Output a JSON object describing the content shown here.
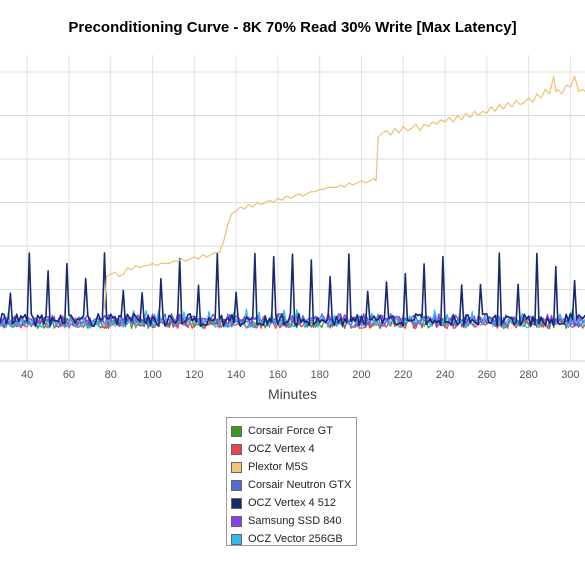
{
  "chart_data": {
    "type": "line",
    "title": "Preconditioning Curve - 8K 70% Read 30% Write [Max Latency]",
    "xlabel": "Minutes",
    "ylabel": "",
    "xlim": [
      27,
      307
    ],
    "ylim": [
      0,
      7
    ],
    "xticks": [
      40,
      60,
      80,
      100,
      120,
      140,
      160,
      180,
      200,
      220,
      240,
      260,
      280,
      300
    ],
    "ygrid": [
      1,
      2,
      3,
      4,
      5,
      6,
      7
    ],
    "grid": true,
    "legend": "bottom-center",
    "series": [
      {
        "name": "Corsair Force GT",
        "color": "#3d9a1f",
        "base": 0.22,
        "noise": 0.12,
        "seed": 11,
        "spike_every": 4,
        "spike_min": 0.25,
        "spike_max": 0.35
      },
      {
        "name": "OCZ Vertex 4",
        "color": "#e8474a",
        "base": 0.2,
        "noise": 0.1,
        "seed": 23,
        "spike_every": 5,
        "spike_min": 0.2,
        "spike_max": 0.35
      },
      {
        "name": "Plextor M5S",
        "color": "#f0c47c",
        "start": 77,
        "points": [
          [
            77,
            0.55
          ],
          [
            78,
            1.3
          ],
          [
            80,
            1.35
          ],
          [
            82,
            1.4
          ],
          [
            84,
            1.3
          ],
          [
            86,
            1.35
          ],
          [
            88,
            1.5
          ],
          [
            90,
            1.45
          ],
          [
            92,
            1.55
          ],
          [
            94,
            1.5
          ],
          [
            96,
            1.55
          ],
          [
            98,
            1.55
          ],
          [
            100,
            1.6
          ],
          [
            102,
            1.55
          ],
          [
            104,
            1.6
          ],
          [
            106,
            1.6
          ],
          [
            108,
            1.6
          ],
          [
            110,
            1.65
          ],
          [
            112,
            1.65
          ],
          [
            114,
            1.7
          ],
          [
            116,
            1.65
          ],
          [
            118,
            1.7
          ],
          [
            120,
            1.75
          ],
          [
            122,
            1.7
          ],
          [
            124,
            1.8
          ],
          [
            126,
            1.75
          ],
          [
            128,
            1.8
          ],
          [
            130,
            1.85
          ],
          [
            132,
            1.85
          ],
          [
            134,
            2.1
          ],
          [
            136,
            2.5
          ],
          [
            138,
            2.75
          ],
          [
            140,
            2.8
          ],
          [
            142,
            2.9
          ],
          [
            144,
            2.85
          ],
          [
            146,
            2.95
          ],
          [
            148,
            2.9
          ],
          [
            150,
            3.0
          ],
          [
            152,
            2.95
          ],
          [
            154,
            3.0
          ],
          [
            156,
            3.05
          ],
          [
            158,
            3.0
          ],
          [
            160,
            3.1
          ],
          [
            162,
            3.05
          ],
          [
            164,
            3.15
          ],
          [
            166,
            3.1
          ],
          [
            168,
            3.15
          ],
          [
            170,
            3.2
          ],
          [
            172,
            3.15
          ],
          [
            174,
            3.2
          ],
          [
            176,
            3.25
          ],
          [
            178,
            3.25
          ],
          [
            180,
            3.3
          ],
          [
            182,
            3.3
          ],
          [
            184,
            3.35
          ],
          [
            186,
            3.35
          ],
          [
            188,
            3.35
          ],
          [
            190,
            3.4
          ],
          [
            192,
            3.35
          ],
          [
            194,
            3.45
          ],
          [
            196,
            3.4
          ],
          [
            198,
            3.45
          ],
          [
            200,
            3.5
          ],
          [
            202,
            3.45
          ],
          [
            204,
            3.5
          ],
          [
            206,
            3.55
          ],
          [
            207,
            3.5
          ],
          [
            208,
            4.5
          ],
          [
            210,
            4.6
          ],
          [
            212,
            4.65
          ],
          [
            214,
            4.55
          ],
          [
            216,
            4.7
          ],
          [
            218,
            4.6
          ],
          [
            220,
            4.75
          ],
          [
            222,
            4.65
          ],
          [
            224,
            4.7
          ],
          [
            226,
            4.8
          ],
          [
            228,
            4.65
          ],
          [
            230,
            4.8
          ],
          [
            232,
            4.75
          ],
          [
            234,
            4.85
          ],
          [
            236,
            4.8
          ],
          [
            238,
            4.9
          ],
          [
            240,
            4.85
          ],
          [
            242,
            4.95
          ],
          [
            244,
            4.85
          ],
          [
            246,
            5.0
          ],
          [
            248,
            4.9
          ],
          [
            250,
            5.05
          ],
          [
            252,
            4.95
          ],
          [
            254,
            5.1
          ],
          [
            256,
            5.0
          ],
          [
            258,
            5.1
          ],
          [
            260,
            5.05
          ],
          [
            262,
            5.2
          ],
          [
            264,
            5.1
          ],
          [
            266,
            5.25
          ],
          [
            268,
            5.15
          ],
          [
            270,
            5.3
          ],
          [
            272,
            5.2
          ],
          [
            274,
            5.35
          ],
          [
            276,
            5.25
          ],
          [
            278,
            5.3
          ],
          [
            280,
            5.4
          ],
          [
            282,
            5.3
          ],
          [
            284,
            5.5
          ],
          [
            286,
            5.4
          ],
          [
            288,
            5.6
          ],
          [
            290,
            5.5
          ],
          [
            292,
            5.9
          ],
          [
            293,
            5.55
          ],
          [
            294,
            5.6
          ],
          [
            296,
            5.5
          ],
          [
            298,
            5.7
          ],
          [
            300,
            5.65
          ],
          [
            302,
            5.9
          ],
          [
            304,
            5.55
          ],
          [
            306,
            5.6
          ],
          [
            307,
            5.55
          ]
        ]
      },
      {
        "name": "Corsair Neutron GTX",
        "color": "#4f6be0",
        "base": 0.25,
        "noise": 0.12,
        "seed": 37,
        "spike_every": 3,
        "spike_min": 0.3,
        "spike_max": 0.45
      },
      {
        "name": "OCZ Vertex 4 512",
        "color": "#172a6e",
        "base": 0.3,
        "noise": 0.15,
        "seed": 41,
        "spike_every": 9,
        "spike_min": 0.9,
        "spike_max": 1.85
      },
      {
        "name": "Samsung SSD 840",
        "color": "#8a3cf0",
        "base": 0.28,
        "noise": 0.14,
        "seed": 53,
        "spike_every": 4,
        "spike_min": 0.3,
        "spike_max": 0.45
      },
      {
        "name": "OCZ Vector 256GB",
        "color": "#33b8ea",
        "base": 0.22,
        "noise": 0.1,
        "seed": 67,
        "spike_every": 6,
        "spike_min": 0.3,
        "spike_max": 0.55
      }
    ]
  }
}
